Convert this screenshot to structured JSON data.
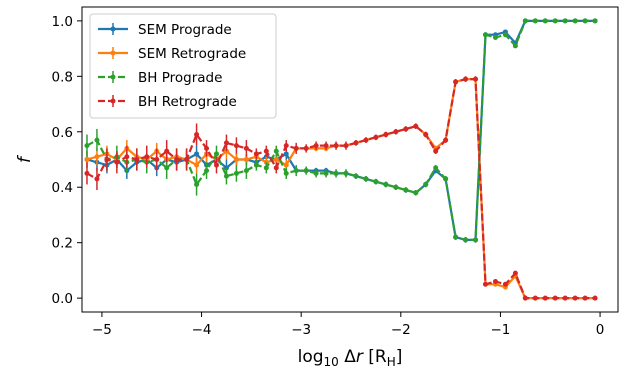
{
  "chart_data": {
    "type": "line",
    "xlabel": "log₁₀ Δr [R_H]",
    "ylabel": "f",
    "xlim": [
      -5.2,
      0.18
    ],
    "ylim": [
      -0.05,
      1.05
    ],
    "xticks": [
      -5,
      -4,
      -3,
      -2,
      -1,
      0
    ],
    "yticks": [
      0.0,
      0.2,
      0.4,
      0.6,
      0.8,
      1.0
    ],
    "xtick_labels": [
      "−5",
      "−4",
      "−3",
      "−2",
      "−1",
      "0"
    ],
    "ytick_labels": [
      "0.0",
      "0.2",
      "0.4",
      "0.6",
      "0.8",
      "1.0"
    ],
    "grid": false,
    "legend_position": "top-left",
    "series": [
      {
        "name": "SEM Prograde",
        "color": "#1f77b4",
        "style": "solid",
        "x": [
          -5.15,
          -5.05,
          -4.95,
          -4.85,
          -4.75,
          -4.65,
          -4.55,
          -4.45,
          -4.35,
          -4.25,
          -4.15,
          -4.05,
          -3.95,
          -3.85,
          -3.75,
          -3.65,
          -3.55,
          -3.45,
          -3.35,
          -3.25,
          -3.15,
          -3.05,
          -2.95,
          -2.85,
          -2.75,
          -2.65,
          -2.55,
          -2.45,
          -2.35,
          -2.25,
          -2.15,
          -2.05,
          -1.95,
          -1.85,
          -1.75,
          -1.65,
          -1.55,
          -1.45,
          -1.35,
          -1.25,
          -1.15,
          -1.05,
          -0.95,
          -0.85,
          -0.75,
          -0.65,
          -0.55,
          -0.45,
          -0.35,
          -0.25,
          -0.15,
          -0.05
        ],
        "y": [
          0.5,
          0.49,
          0.48,
          0.5,
          0.46,
          0.49,
          0.5,
          0.47,
          0.5,
          0.49,
          0.5,
          0.52,
          0.48,
          0.5,
          0.47,
          0.5,
          0.5,
          0.49,
          0.51,
          0.5,
          0.52,
          0.46,
          0.46,
          0.46,
          0.46,
          0.45,
          0.45,
          0.44,
          0.43,
          0.42,
          0.41,
          0.4,
          0.39,
          0.38,
          0.41,
          0.46,
          0.43,
          0.22,
          0.21,
          0.21,
          0.95,
          0.95,
          0.96,
          0.92,
          1.0,
          1.0,
          1.0,
          1.0,
          1.0,
          1.0,
          1.0,
          1.0
        ],
        "err": [
          0.03,
          0.03,
          0.03,
          0.03,
          0.03,
          0.03,
          0.03,
          0.03,
          0.03,
          0.03,
          0.03,
          0.03,
          0.03,
          0.03,
          0.03,
          0.02,
          0.02,
          0.02,
          0.02,
          0.02,
          0.02,
          0.01,
          0.01,
          0.01,
          0.01,
          0.01,
          0.01,
          0.01,
          0.01,
          0.01,
          0.01,
          0.01,
          0.01,
          0.01,
          0.01,
          0.01,
          0.01,
          0.01,
          0.01,
          0.01,
          0.005,
          0.005,
          0.005,
          0.005,
          0.005,
          0.0,
          0.0,
          0.0,
          0.0,
          0.0,
          0.0,
          0.0
        ]
      },
      {
        "name": "SEM Retrograde",
        "color": "#ff7f0e",
        "style": "solid",
        "x": [
          -5.15,
          -5.05,
          -4.95,
          -4.85,
          -4.75,
          -4.65,
          -4.55,
          -4.45,
          -4.35,
          -4.25,
          -4.15,
          -4.05,
          -3.95,
          -3.85,
          -3.75,
          -3.65,
          -3.55,
          -3.45,
          -3.35,
          -3.25,
          -3.15,
          -3.05,
          -2.95,
          -2.85,
          -2.75,
          -2.65,
          -2.55,
          -2.45,
          -2.35,
          -2.25,
          -2.15,
          -2.05,
          -1.95,
          -1.85,
          -1.75,
          -1.65,
          -1.55,
          -1.45,
          -1.35,
          -1.25,
          -1.15,
          -1.05,
          -0.95,
          -0.85,
          -0.75,
          -0.65,
          -0.55,
          -0.45,
          -0.35,
          -0.25,
          -0.15,
          -0.05
        ],
        "y": [
          0.5,
          0.51,
          0.52,
          0.5,
          0.54,
          0.51,
          0.5,
          0.53,
          0.5,
          0.51,
          0.5,
          0.48,
          0.52,
          0.5,
          0.53,
          0.5,
          0.5,
          0.51,
          0.49,
          0.5,
          0.48,
          0.54,
          0.54,
          0.54,
          0.54,
          0.55,
          0.55,
          0.56,
          0.57,
          0.58,
          0.59,
          0.6,
          0.61,
          0.62,
          0.59,
          0.54,
          0.57,
          0.78,
          0.79,
          0.79,
          0.05,
          0.05,
          0.04,
          0.08,
          0.0,
          0.0,
          0.0,
          0.0,
          0.0,
          0.0,
          0.0,
          0.0
        ],
        "err": [
          0.03,
          0.03,
          0.03,
          0.03,
          0.03,
          0.03,
          0.03,
          0.03,
          0.03,
          0.03,
          0.03,
          0.03,
          0.03,
          0.03,
          0.03,
          0.02,
          0.02,
          0.02,
          0.02,
          0.02,
          0.02,
          0.01,
          0.01,
          0.01,
          0.01,
          0.01,
          0.01,
          0.01,
          0.01,
          0.01,
          0.01,
          0.01,
          0.01,
          0.01,
          0.01,
          0.01,
          0.01,
          0.01,
          0.01,
          0.01,
          0.005,
          0.005,
          0.005,
          0.005,
          0.005,
          0.0,
          0.0,
          0.0,
          0.0,
          0.0,
          0.0,
          0.0
        ]
      },
      {
        "name": "BH Prograde",
        "color": "#2ca02c",
        "style": "dashed",
        "x": [
          -5.15,
          -5.05,
          -4.95,
          -4.85,
          -4.75,
          -4.65,
          -4.55,
          -4.45,
          -4.35,
          -4.25,
          -4.15,
          -4.05,
          -3.95,
          -3.85,
          -3.75,
          -3.65,
          -3.55,
          -3.45,
          -3.35,
          -3.25,
          -3.15,
          -3.05,
          -2.95,
          -2.85,
          -2.75,
          -2.65,
          -2.55,
          -2.45,
          -2.35,
          -2.25,
          -2.15,
          -2.05,
          -1.95,
          -1.85,
          -1.75,
          -1.65,
          -1.55,
          -1.45,
          -1.35,
          -1.25,
          -1.15,
          -1.05,
          -0.95,
          -0.85,
          -0.75,
          -0.65,
          -0.55,
          -0.45,
          -0.35,
          -0.25,
          -0.15,
          -0.05
        ],
        "y": [
          0.55,
          0.57,
          0.5,
          0.51,
          0.49,
          0.5,
          0.49,
          0.5,
          0.47,
          0.5,
          0.5,
          0.41,
          0.46,
          0.52,
          0.44,
          0.45,
          0.46,
          0.48,
          0.47,
          0.53,
          0.45,
          0.46,
          0.46,
          0.45,
          0.45,
          0.45,
          0.45,
          0.44,
          0.43,
          0.42,
          0.41,
          0.4,
          0.39,
          0.38,
          0.41,
          0.47,
          0.43,
          0.22,
          0.21,
          0.21,
          0.95,
          0.94,
          0.95,
          0.91,
          1.0,
          1.0,
          1.0,
          1.0,
          1.0,
          1.0,
          1.0,
          1.0
        ],
        "err": [
          0.04,
          0.04,
          0.04,
          0.04,
          0.04,
          0.04,
          0.04,
          0.04,
          0.04,
          0.04,
          0.04,
          0.04,
          0.03,
          0.03,
          0.03,
          0.03,
          0.03,
          0.02,
          0.02,
          0.02,
          0.02,
          0.02,
          0.015,
          0.015,
          0.015,
          0.015,
          0.015,
          0.01,
          0.01,
          0.01,
          0.01,
          0.01,
          0.01,
          0.01,
          0.01,
          0.01,
          0.01,
          0.01,
          0.01,
          0.01,
          0.005,
          0.005,
          0.005,
          0.005,
          0.005,
          0.0,
          0.0,
          0.0,
          0.0,
          0.0,
          0.0,
          0.0
        ]
      },
      {
        "name": "BH Retrograde",
        "color": "#d62728",
        "style": "dashed",
        "x": [
          -5.15,
          -5.05,
          -4.95,
          -4.85,
          -4.75,
          -4.65,
          -4.55,
          -4.45,
          -4.35,
          -4.25,
          -4.15,
          -4.05,
          -3.95,
          -3.85,
          -3.75,
          -3.65,
          -3.55,
          -3.45,
          -3.35,
          -3.25,
          -3.15,
          -3.05,
          -2.95,
          -2.85,
          -2.75,
          -2.65,
          -2.55,
          -2.45,
          -2.35,
          -2.25,
          -2.15,
          -2.05,
          -1.95,
          -1.85,
          -1.75,
          -1.65,
          -1.55,
          -1.45,
          -1.35,
          -1.25,
          -1.15,
          -1.05,
          -0.95,
          -0.85,
          -0.75,
          -0.65,
          -0.55,
          -0.45,
          -0.35,
          -0.25,
          -0.15,
          -0.05
        ],
        "y": [
          0.45,
          0.43,
          0.5,
          0.49,
          0.51,
          0.5,
          0.51,
          0.5,
          0.53,
          0.5,
          0.5,
          0.59,
          0.54,
          0.48,
          0.56,
          0.55,
          0.54,
          0.52,
          0.53,
          0.47,
          0.55,
          0.54,
          0.54,
          0.55,
          0.55,
          0.55,
          0.55,
          0.56,
          0.57,
          0.58,
          0.59,
          0.6,
          0.61,
          0.62,
          0.59,
          0.53,
          0.57,
          0.78,
          0.79,
          0.79,
          0.05,
          0.06,
          0.05,
          0.09,
          0.0,
          0.0,
          0.0,
          0.0,
          0.0,
          0.0,
          0.0,
          0.0
        ],
        "err": [
          0.04,
          0.04,
          0.04,
          0.04,
          0.04,
          0.04,
          0.04,
          0.04,
          0.04,
          0.04,
          0.04,
          0.04,
          0.03,
          0.03,
          0.03,
          0.03,
          0.03,
          0.02,
          0.02,
          0.02,
          0.02,
          0.02,
          0.015,
          0.015,
          0.015,
          0.015,
          0.015,
          0.01,
          0.01,
          0.01,
          0.01,
          0.01,
          0.01,
          0.01,
          0.01,
          0.01,
          0.01,
          0.01,
          0.01,
          0.01,
          0.005,
          0.005,
          0.005,
          0.005,
          0.005,
          0.0,
          0.0,
          0.0,
          0.0,
          0.0,
          0.0,
          0.0
        ]
      }
    ]
  }
}
